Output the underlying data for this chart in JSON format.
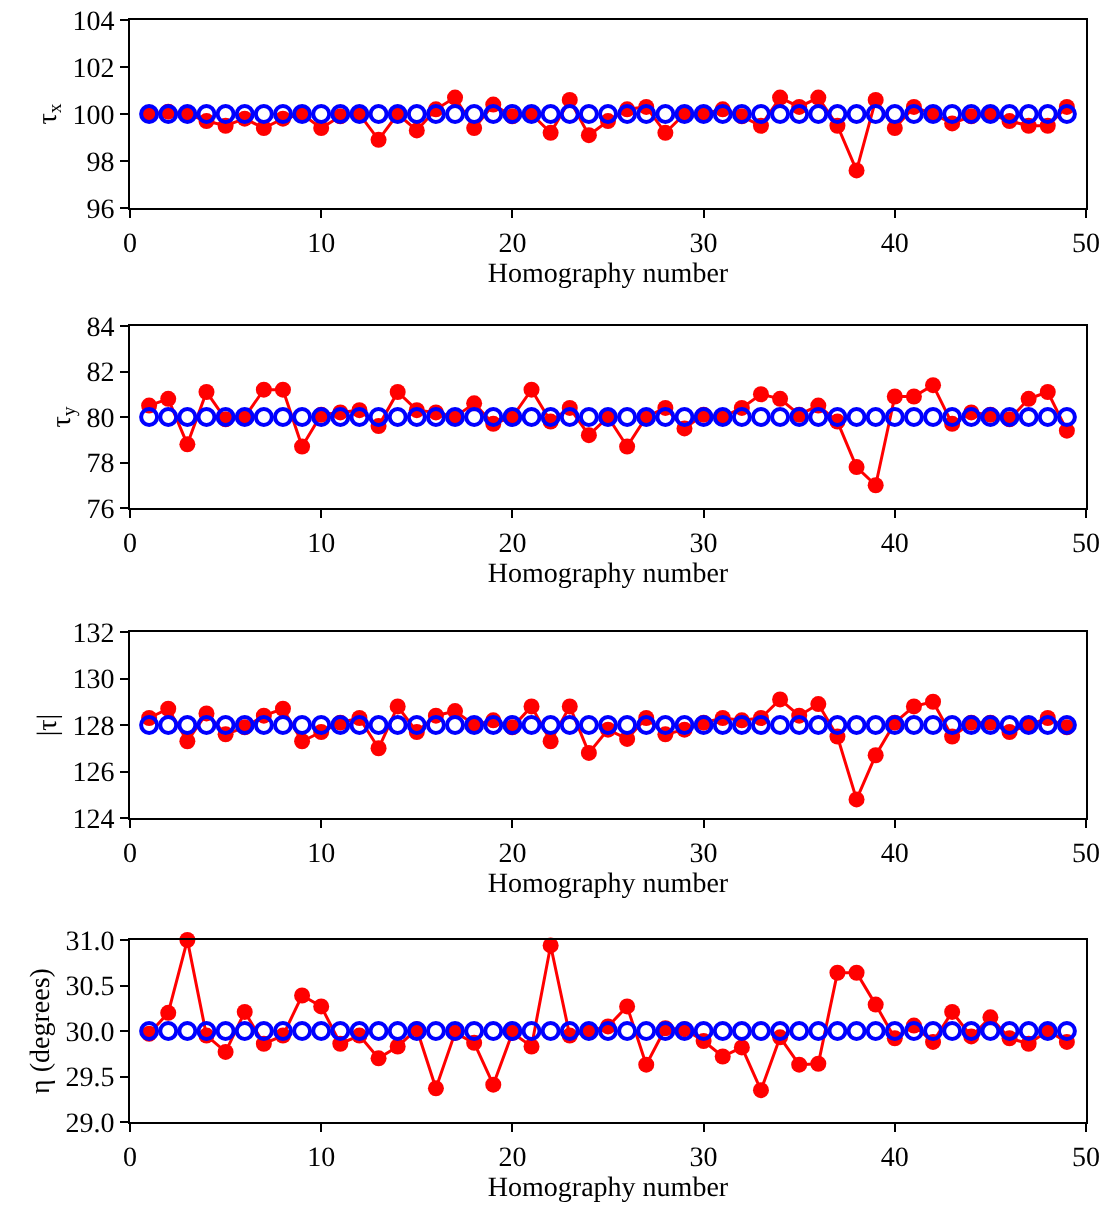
{
  "chart_data": [
    {
      "type": "line",
      "xlabel": "Homography number",
      "ylabel": "τ$_{x}$",
      "x": [
        1,
        2,
        3,
        4,
        5,
        6,
        7,
        8,
        9,
        10,
        11,
        12,
        13,
        14,
        15,
        16,
        17,
        18,
        19,
        20,
        21,
        22,
        23,
        24,
        25,
        26,
        27,
        28,
        29,
        30,
        31,
        32,
        33,
        34,
        35,
        36,
        37,
        38,
        39,
        40,
        41,
        42,
        43,
        44,
        45,
        46,
        47,
        48,
        49
      ],
      "xlim": [
        0,
        50
      ],
      "xticks": [
        0,
        10,
        20,
        30,
        40,
        50
      ],
      "ylim": [
        96,
        104
      ],
      "yticks": [
        96,
        98,
        100,
        102,
        104
      ],
      "grid": false,
      "marker": "circle",
      "series": [
        {
          "color": "#ff0000",
          "values": [
            100,
            100.1,
            100,
            99.7,
            99.5,
            99.8,
            99.4,
            99.8,
            100,
            99.4,
            99.9,
            100,
            98.9,
            100,
            99.3,
            100.2,
            100.7,
            99.4,
            100.4,
            99.9,
            100,
            99.2,
            100.6,
            99.1,
            99.7,
            100.2,
            100.3,
            99.2,
            100,
            100,
            100.2,
            99.9,
            99.5,
            100.7,
            100.3,
            100.7,
            99.5,
            97.6,
            100.6,
            99.4,
            100.3,
            100,
            99.6,
            99.9,
            100,
            99.7,
            99.5,
            99.5,
            100.3
          ]
        },
        {
          "type": "scatter",
          "color": "#0000ff",
          "values": [
            100,
            100,
            100,
            100,
            100,
            100,
            100,
            100,
            100,
            100,
            100,
            100,
            100,
            100,
            100,
            100,
            100,
            100,
            100,
            100,
            100,
            100,
            100,
            100,
            100,
            100,
            100,
            100,
            100,
            100,
            100,
            100,
            100,
            100,
            100,
            100,
            100,
            100,
            100,
            100,
            100,
            100,
            100,
            100,
            100,
            100,
            100,
            100,
            100
          ]
        }
      ]
    },
    {
      "type": "line",
      "xlabel": "Homography number",
      "ylabel": "τ$_{y}$",
      "x": [
        1,
        2,
        3,
        4,
        5,
        6,
        7,
        8,
        9,
        10,
        11,
        12,
        13,
        14,
        15,
        16,
        17,
        18,
        19,
        20,
        21,
        22,
        23,
        24,
        25,
        26,
        27,
        28,
        29,
        30,
        31,
        32,
        33,
        34,
        35,
        36,
        37,
        38,
        39,
        40,
        41,
        42,
        43,
        44,
        45,
        46,
        47,
        48,
        49
      ],
      "xlim": [
        0,
        50
      ],
      "xticks": [
        0,
        10,
        20,
        30,
        40,
        50
      ],
      "ylim": [
        76,
        84
      ],
      "yticks": [
        76,
        78,
        80,
        82,
        84
      ],
      "grid": false,
      "marker": "circle",
      "series": [
        {
          "color": "#ff0000",
          "values": [
            80.5,
            80.8,
            78.8,
            81.1,
            79.9,
            80,
            81.2,
            81.2,
            78.7,
            80.1,
            80.2,
            80.3,
            79.6,
            81.1,
            80.3,
            80.2,
            80,
            80.6,
            79.7,
            80,
            81.2,
            79.8,
            80.4,
            79.2,
            80,
            78.7,
            80,
            80.4,
            79.5,
            80.1,
            80,
            80.4,
            81,
            80.8,
            80.1,
            80.5,
            79.8,
            77.8,
            77,
            80.9,
            80.9,
            81.4,
            79.7,
            80.2,
            80.1,
            79.9,
            80.8,
            81.1,
            79.4
          ]
        },
        {
          "type": "scatter",
          "color": "#0000ff",
          "values": [
            80,
            80,
            80,
            80,
            80,
            80,
            80,
            80,
            80,
            80,
            80,
            80,
            80,
            80,
            80,
            80,
            80,
            80,
            80,
            80,
            80,
            80,
            80,
            80,
            80,
            80,
            80,
            80,
            80,
            80,
            80,
            80,
            80,
            80,
            80,
            80,
            80,
            80,
            80,
            80,
            80,
            80,
            80,
            80,
            80,
            80,
            80,
            80,
            80
          ]
        }
      ]
    },
    {
      "type": "line",
      "xlabel": "Homography number",
      "ylabel": "|τ|",
      "x": [
        1,
        2,
        3,
        4,
        5,
        6,
        7,
        8,
        9,
        10,
        11,
        12,
        13,
        14,
        15,
        16,
        17,
        18,
        19,
        20,
        21,
        22,
        23,
        24,
        25,
        26,
        27,
        28,
        29,
        30,
        31,
        32,
        33,
        34,
        35,
        36,
        37,
        38,
        39,
        40,
        41,
        42,
        43,
        44,
        45,
        46,
        47,
        48,
        49
      ],
      "xlim": [
        0,
        50
      ],
      "xticks": [
        0,
        10,
        20,
        30,
        40,
        50
      ],
      "ylim": [
        124,
        132
      ],
      "yticks": [
        124,
        126,
        128,
        130,
        132
      ],
      "grid": false,
      "marker": "circle",
      "series": [
        {
          "color": "#ff0000",
          "values": [
            128.3,
            128.7,
            127.3,
            128.5,
            127.6,
            127.9,
            128.4,
            128.7,
            127.3,
            127.7,
            128.1,
            128.3,
            127,
            128.8,
            127.7,
            128.4,
            128.6,
            128,
            128.2,
            127.9,
            128.8,
            127.3,
            128.8,
            126.8,
            127.8,
            127.4,
            128.3,
            127.6,
            127.8,
            128.1,
            128.3,
            128.2,
            128.3,
            129.1,
            128.4,
            128.9,
            127.5,
            124.8,
            126.7,
            128.1,
            128.8,
            129,
            127.5,
            128.1,
            128.1,
            127.7,
            128,
            128.3,
            127.9
          ]
        },
        {
          "type": "scatter",
          "color": "#0000ff",
          "values": [
            128,
            128,
            128,
            128,
            128,
            128,
            128,
            128,
            128,
            128,
            128,
            128,
            128,
            128,
            128,
            128,
            128,
            128,
            128,
            128,
            128,
            128,
            128,
            128,
            128,
            128,
            128,
            128,
            128,
            128,
            128,
            128,
            128,
            128,
            128,
            128,
            128,
            128,
            128,
            128,
            128,
            128,
            128,
            128,
            128,
            128,
            128,
            128,
            128
          ]
        }
      ]
    },
    {
      "type": "line",
      "xlabel": "Homography number",
      "ylabel": "η (degrees)",
      "x": [
        1,
        2,
        3,
        4,
        5,
        6,
        7,
        8,
        9,
        10,
        11,
        12,
        13,
        14,
        15,
        16,
        17,
        18,
        19,
        20,
        21,
        22,
        23,
        24,
        25,
        26,
        27,
        28,
        29,
        30,
        31,
        32,
        33,
        34,
        35,
        36,
        37,
        38,
        39,
        40,
        41,
        42,
        43,
        44,
        45,
        46,
        47,
        48,
        49
      ],
      "xlim": [
        0,
        50
      ],
      "xticks": [
        0,
        10,
        20,
        30,
        40,
        50
      ],
      "ylim": [
        29,
        31
      ],
      "yticks": [
        {
          "value": 29,
          "label": "29.0"
        },
        {
          "value": 29.5,
          "label": "29.5"
        },
        {
          "value": 30,
          "label": "30.0"
        },
        {
          "value": 30.5,
          "label": "30.5"
        },
        {
          "value": 31,
          "label": "31.0"
        }
      ],
      "grid": false,
      "marker": "circle",
      "series": [
        {
          "color": "#ff0000",
          "values": [
            29.97,
            30.2,
            31.0,
            29.95,
            29.77,
            30.21,
            29.86,
            29.95,
            30.39,
            30.27,
            29.86,
            29.95,
            29.7,
            29.83,
            30.02,
            29.37,
            29.98,
            29.87,
            29.41,
            29.98,
            29.83,
            30.94,
            29.95,
            30.0,
            30.05,
            30.27,
            29.63,
            30.03,
            30.02,
            29.89,
            29.72,
            29.82,
            29.35,
            29.93,
            29.63,
            29.64,
            30.64,
            30.64,
            30.29,
            29.92,
            30.06,
            29.88,
            30.21,
            29.94,
            30.15,
            29.92,
            29.86,
            30.0,
            29.88
          ]
        },
        {
          "type": "scatter",
          "color": "#0000ff",
          "values": [
            30,
            30,
            30,
            30,
            30,
            30,
            30,
            30,
            30,
            30,
            30,
            30,
            30,
            30,
            30,
            30,
            30,
            30,
            30,
            30,
            30,
            30,
            30,
            30,
            30,
            30,
            30,
            30,
            30,
            30,
            30,
            30,
            30,
            30,
            30,
            30,
            30,
            30,
            30,
            30,
            30,
            30,
            30,
            30,
            30,
            30,
            30,
            30,
            30
          ]
        }
      ]
    }
  ]
}
